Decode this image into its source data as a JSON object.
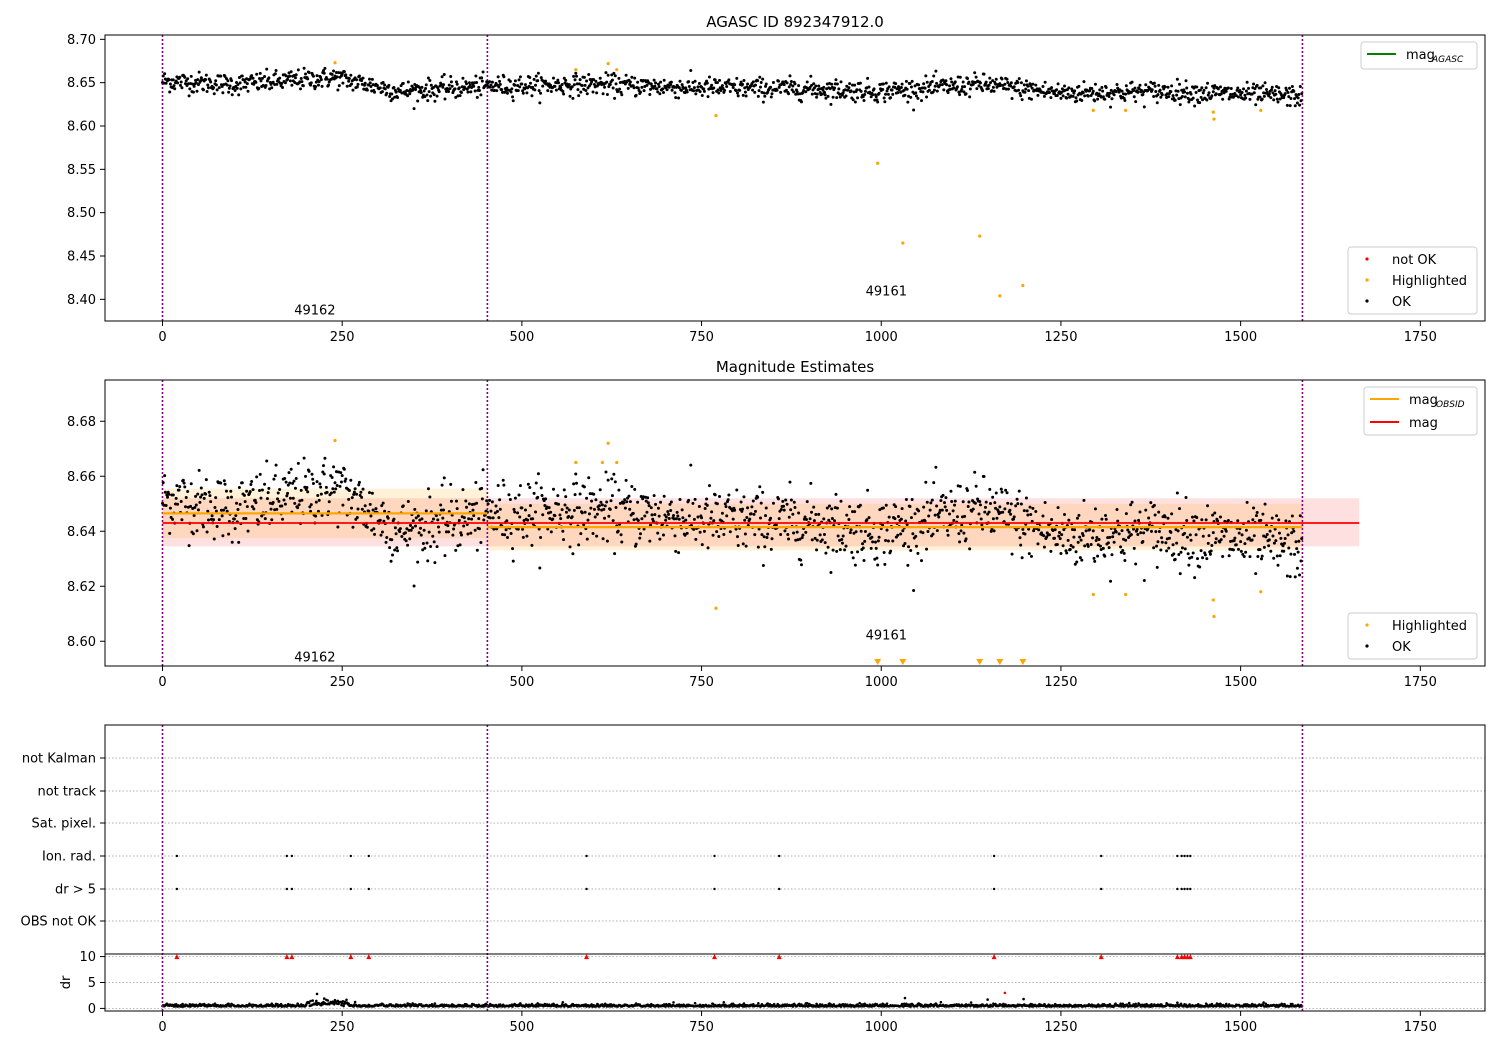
{
  "figure": {
    "panel1_title": "AGASC ID 892347912.0",
    "panel2_title": "Magnitude Estimates"
  },
  "chart_data": [
    {
      "type": "scatter",
      "title": "AGASC ID 892347912.0",
      "xlim": [
        -80,
        1840
      ],
      "ylim": [
        8.375,
        8.705
      ],
      "x_ticks": [
        0,
        250,
        500,
        750,
        1000,
        1250,
        1500,
        1750
      ],
      "y_ticks": [
        8.4,
        8.45,
        8.5,
        8.55,
        8.6,
        8.65,
        8.7
      ],
      "y_tick_labels": [
        "8.40",
        "8.45",
        "8.50",
        "8.55",
        "8.60",
        "8.65",
        "8.70"
      ],
      "obsid_boundaries": [
        0,
        452,
        1586
      ],
      "obsid_labels": [
        {
          "text": "49162",
          "x": 225,
          "y": 8.388
        },
        {
          "text": "49161",
          "x": 1020,
          "y": 8.41
        }
      ],
      "ok_trend": [
        {
          "x": 0,
          "y": 8.652
        },
        {
          "x": 100,
          "y": 8.648
        },
        {
          "x": 240,
          "y": 8.656
        },
        {
          "x": 330,
          "y": 8.64
        },
        {
          "x": 452,
          "y": 8.646
        },
        {
          "x": 600,
          "y": 8.648
        },
        {
          "x": 750,
          "y": 8.644
        },
        {
          "x": 900,
          "y": 8.643
        },
        {
          "x": 1000,
          "y": 8.64
        },
        {
          "x": 1140,
          "y": 8.648
        },
        {
          "x": 1250,
          "y": 8.638
        },
        {
          "x": 1400,
          "y": 8.64
        },
        {
          "x": 1586,
          "y": 8.634
        }
      ],
      "ok_spread": 0.008,
      "ok_count": 1586,
      "highlighted": [
        {
          "x": 240,
          "y": 8.673
        },
        {
          "x": 575,
          "y": 8.665
        },
        {
          "x": 620,
          "y": 8.672
        },
        {
          "x": 632,
          "y": 8.665
        },
        {
          "x": 770,
          "y": 8.612
        },
        {
          "x": 995,
          "y": 8.557
        },
        {
          "x": 1030,
          "y": 8.465
        },
        {
          "x": 1137,
          "y": 8.473
        },
        {
          "x": 1165,
          "y": 8.404
        },
        {
          "x": 1197,
          "y": 8.416
        },
        {
          "x": 1295,
          "y": 8.618
        },
        {
          "x": 1340,
          "y": 8.618
        },
        {
          "x": 1462,
          "y": 8.616
        },
        {
          "x": 1463,
          "y": 8.608
        },
        {
          "x": 1528,
          "y": 8.618
        }
      ],
      "lines": [
        {
          "name": "mag_AGASC",
          "color": "#008000"
        }
      ],
      "legend_top": {
        "label_main": "mag",
        "label_sub": "AGASC"
      },
      "legend_bottom": [
        "not OK",
        "Highlighted",
        "OK"
      ],
      "colors": {
        "ok": "#000000",
        "highlighted": "#ffa500",
        "not_ok": "#ff0000",
        "boundary": "#800080"
      }
    },
    {
      "type": "scatter",
      "title": "Magnitude Estimates",
      "xlim": [
        -80,
        1840
      ],
      "ylim": [
        8.591,
        8.695
      ],
      "x_ticks": [
        0,
        250,
        500,
        750,
        1000,
        1250,
        1500,
        1750
      ],
      "y_ticks": [
        8.6,
        8.62,
        8.64,
        8.66,
        8.68
      ],
      "y_tick_labels": [
        "8.60",
        "8.62",
        "8.64",
        "8.66",
        "8.68"
      ],
      "obsid_boundaries": [
        0,
        452,
        1586
      ],
      "obsid_labels": [
        {
          "text": "49162",
          "x": 225,
          "y": 8.5945
        },
        {
          "text": "49161",
          "x": 1020,
          "y": 8.6025
        }
      ],
      "mag_obsid": [
        {
          "x0": 0,
          "x1": 452,
          "mag": 8.6465,
          "low": 8.6375,
          "high": 8.6555
        },
        {
          "x0": 452,
          "x1": 1586,
          "mag": 8.6415,
          "low": 8.633,
          "high": 8.65
        }
      ],
      "mag": {
        "x0": 0,
        "x1": 1665,
        "value": 8.643,
        "low": 8.6345,
        "high": 8.652
      },
      "highlighted": [
        {
          "x": 240,
          "y": 8.673
        },
        {
          "x": 575,
          "y": 8.665
        },
        {
          "x": 620,
          "y": 8.672
        },
        {
          "x": 612,
          "y": 8.665
        },
        {
          "x": 632,
          "y": 8.665
        },
        {
          "x": 770,
          "y": 8.612
        },
        {
          "x": 1295,
          "y": 8.617
        },
        {
          "x": 1340,
          "y": 8.617
        },
        {
          "x": 1462,
          "y": 8.615
        },
        {
          "x": 1463,
          "y": 8.609
        },
        {
          "x": 1528,
          "y": 8.618
        }
      ],
      "off_scale_markers_x": [
        995,
        1030,
        1137,
        1165,
        1197
      ],
      "legend_top": [
        {
          "label_main": "mag",
          "label_sub": "OBSID",
          "color": "#ffa500"
        },
        {
          "label_main": "mag",
          "label_sub": "",
          "color": "#ff0000"
        }
      ],
      "legend_bottom": [
        "Highlighted",
        "OK"
      ]
    },
    {
      "type": "scatter",
      "title": "",
      "xlim": [
        -80,
        1840
      ],
      "flag_rows": [
        "not Kalman",
        "not track",
        "Sat. pixel.",
        "Ion. rad.",
        "dr > 5",
        "OBS not OK"
      ],
      "flag_events_x": [
        20,
        173,
        180,
        262,
        287,
        590,
        768,
        858,
        1157,
        1306,
        1412,
        1418,
        1422,
        1426,
        1430
      ],
      "flag_event_rows": [
        "Ion. rad.",
        "dr > 5"
      ],
      "dr_ylabel": "dr",
      "dr_ylim": [
        -0.5,
        10.5
      ],
      "dr_y_ticks": [
        0,
        5,
        10
      ],
      "dr_y_tick_labels": [
        "0",
        "5",
        "10"
      ],
      "dr_clipped_value": 10,
      "dr_outliers": [
        {
          "x": 215,
          "y": 2.8
        },
        {
          "x": 225,
          "y": 1.9
        },
        {
          "x": 240,
          "y": 1.6
        },
        {
          "x": 1033,
          "y": 2.0
        },
        {
          "x": 1148,
          "y": 1.7
        },
        {
          "x": 1198,
          "y": 1.8
        }
      ],
      "dr_not_ok": [
        {
          "x": 1172,
          "y": 3.0
        }
      ],
      "x_ticks": [
        0,
        250,
        500,
        750,
        1000,
        1250,
        1500,
        1750
      ]
    }
  ]
}
